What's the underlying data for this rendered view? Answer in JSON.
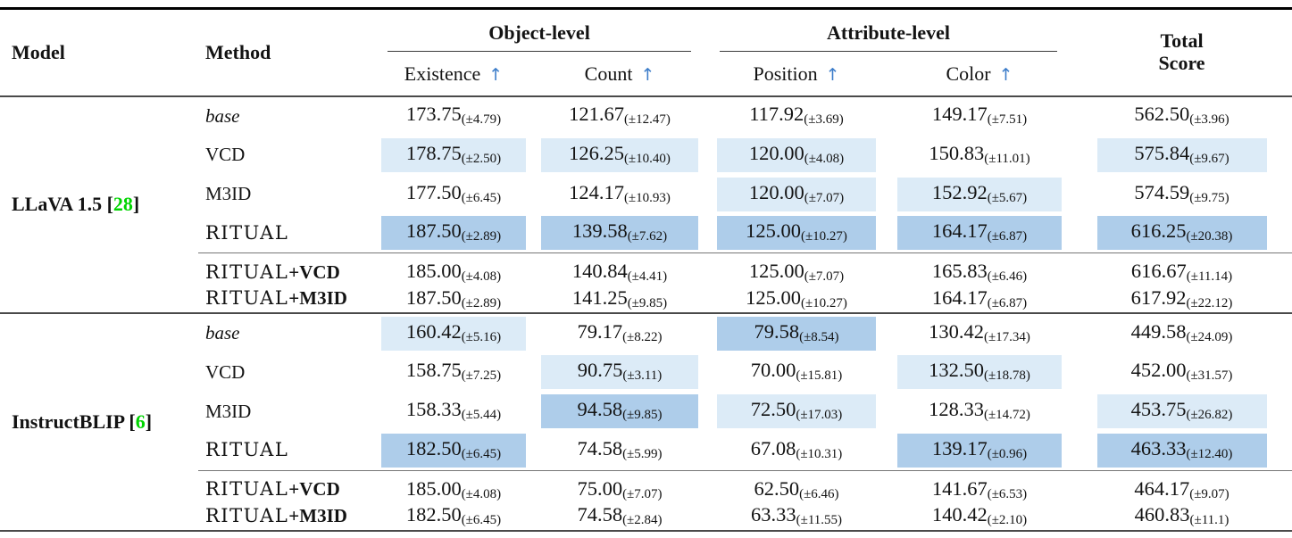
{
  "header": {
    "model": "Model",
    "method": "Method",
    "groups": [
      {
        "label": "Object-level",
        "cols": [
          "Existence",
          "Count"
        ]
      },
      {
        "label": "Attribute-level",
        "cols": [
          "Position",
          "Color"
        ]
      }
    ],
    "total_line1": "Total",
    "total_line2": "Score",
    "arrow": "↑"
  },
  "citation_brackets": {
    "open": "[",
    "close": "]"
  },
  "colors": {
    "highlight_light": "#dcebf7",
    "highlight_dark": "#aecdea",
    "citation_green": "#00d400",
    "arrow_blue": "#3b7cc9"
  },
  "sections": [
    {
      "model": "LLaVA 1.5",
      "citation": "28",
      "rows": [
        {
          "method": "base",
          "style": "italic",
          "cells": [
            {
              "v": "173.75",
              "s": "(±4.79)",
              "hl": "none"
            },
            {
              "v": "121.67",
              "s": "(±12.47)",
              "hl": "none"
            },
            {
              "v": "117.92",
              "s": "(±3.69)",
              "hl": "none"
            },
            {
              "v": "149.17",
              "s": "(±7.51)",
              "hl": "none"
            },
            {
              "v": "562.50",
              "s": "(±3.96)",
              "hl": "none"
            }
          ]
        },
        {
          "method": "VCD",
          "style": "plain",
          "cells": [
            {
              "v": "178.75",
              "s": "(±2.50)",
              "hl": "light"
            },
            {
              "v": "126.25",
              "s": "(±10.40)",
              "hl": "light"
            },
            {
              "v": "120.00",
              "s": "(±4.08)",
              "hl": "light"
            },
            {
              "v": "150.83",
              "s": "(±11.01)",
              "hl": "none"
            },
            {
              "v": "575.84",
              "s": "(±9.67)",
              "hl": "light"
            }
          ]
        },
        {
          "method": "M3ID",
          "style": "plain",
          "cells": [
            {
              "v": "177.50",
              "s": "(±6.45)",
              "hl": "none"
            },
            {
              "v": "124.17",
              "s": "(±10.93)",
              "hl": "none"
            },
            {
              "v": "120.00",
              "s": "(±7.07)",
              "hl": "light"
            },
            {
              "v": "152.92",
              "s": "(±5.67)",
              "hl": "light"
            },
            {
              "v": "574.59",
              "s": "(±9.75)",
              "hl": "none"
            }
          ]
        },
        {
          "method": "RITUAL",
          "style": "logo",
          "cells": [
            {
              "v": "187.50",
              "s": "(±2.89)",
              "hl": "dark"
            },
            {
              "v": "139.58",
              "s": "(±7.62)",
              "hl": "dark"
            },
            {
              "v": "125.00",
              "s": "(±10.27)",
              "hl": "dark"
            },
            {
              "v": "164.17",
              "s": "(±6.87)",
              "hl": "dark"
            },
            {
              "v": "616.25",
              "s": "(±20.38)",
              "hl": "dark"
            }
          ]
        }
      ],
      "subrows": [
        {
          "method": "RITUAL",
          "style": "logo",
          "suffix": "+VCD",
          "cells": [
            {
              "v": "185.00",
              "s": "(±4.08)",
              "hl": "none"
            },
            {
              "v": "140.84",
              "s": "(±4.41)",
              "hl": "none"
            },
            {
              "v": "125.00",
              "s": "(±7.07)",
              "hl": "none"
            },
            {
              "v": "165.83",
              "s": "(±6.46)",
              "hl": "none"
            },
            {
              "v": "616.67",
              "s": "(±11.14)",
              "hl": "none"
            }
          ]
        },
        {
          "method": "RITUAL",
          "style": "logo",
          "suffix": "+M3ID",
          "cells": [
            {
              "v": "187.50",
              "s": "(±2.89)",
              "hl": "none"
            },
            {
              "v": "141.25",
              "s": "(±9.85)",
              "hl": "none"
            },
            {
              "v": "125.00",
              "s": "(±10.27)",
              "hl": "none"
            },
            {
              "v": "164.17",
              "s": "(±6.87)",
              "hl": "none"
            },
            {
              "v": "617.92",
              "s": "(±22.12)",
              "hl": "none"
            }
          ]
        }
      ]
    },
    {
      "model": "InstructBLIP",
      "citation": "6",
      "rows": [
        {
          "method": "base",
          "style": "italic",
          "cells": [
            {
              "v": "160.42",
              "s": "(±5.16)",
              "hl": "light"
            },
            {
              "v": "79.17",
              "s": "(±8.22)",
              "hl": "none"
            },
            {
              "v": "79.58",
              "s": "(±8.54)",
              "hl": "dark"
            },
            {
              "v": "130.42",
              "s": "(±17.34)",
              "hl": "none"
            },
            {
              "v": "449.58",
              "s": "(±24.09)",
              "hl": "none"
            }
          ]
        },
        {
          "method": "VCD",
          "style": "plain",
          "cells": [
            {
              "v": "158.75",
              "s": "(±7.25)",
              "hl": "none"
            },
            {
              "v": "90.75",
              "s": "(±3.11)",
              "hl": "light"
            },
            {
              "v": "70.00",
              "s": "(±15.81)",
              "hl": "none"
            },
            {
              "v": "132.50",
              "s": "(±18.78)",
              "hl": "light"
            },
            {
              "v": "452.00",
              "s": "(±31.57)",
              "hl": "none"
            }
          ]
        },
        {
          "method": "M3ID",
          "style": "plain",
          "cells": [
            {
              "v": "158.33",
              "s": "(±5.44)",
              "hl": "none"
            },
            {
              "v": "94.58",
              "s": "(±9.85)",
              "hl": "dark"
            },
            {
              "v": "72.50",
              "s": "(±17.03)",
              "hl": "light"
            },
            {
              "v": "128.33",
              "s": "(±14.72)",
              "hl": "none"
            },
            {
              "v": "453.75",
              "s": "(±26.82)",
              "hl": "light"
            }
          ]
        },
        {
          "method": "RITUAL",
          "style": "logo",
          "cells": [
            {
              "v": "182.50",
              "s": "(±6.45)",
              "hl": "dark"
            },
            {
              "v": "74.58",
              "s": "(±5.99)",
              "hl": "none"
            },
            {
              "v": "67.08",
              "s": "(±10.31)",
              "hl": "none"
            },
            {
              "v": "139.17",
              "s": "(±0.96)",
              "hl": "dark"
            },
            {
              "v": "463.33",
              "s": "(±12.40)",
              "hl": "dark"
            }
          ]
        }
      ],
      "subrows": [
        {
          "method": "RITUAL",
          "style": "logo",
          "suffix": "+VCD",
          "cells": [
            {
              "v": "185.00",
              "s": "(±4.08)",
              "hl": "none"
            },
            {
              "v": "75.00",
              "s": "(±7.07)",
              "hl": "none"
            },
            {
              "v": "62.50",
              "s": "(±6.46)",
              "hl": "none"
            },
            {
              "v": "141.67",
              "s": "(±6.53)",
              "hl": "none"
            },
            {
              "v": "464.17",
              "s": "(±9.07)",
              "hl": "none"
            }
          ]
        },
        {
          "method": "RITUAL",
          "style": "logo",
          "suffix": "+M3ID",
          "cells": [
            {
              "v": "182.50",
              "s": "(±6.45)",
              "hl": "none"
            },
            {
              "v": "74.58",
              "s": "(±2.84)",
              "hl": "none"
            },
            {
              "v": "63.33",
              "s": "(±11.55)",
              "hl": "none"
            },
            {
              "v": "140.42",
              "s": "(±2.10)",
              "hl": "none"
            },
            {
              "v": "460.83",
              "s": "(±11.1)",
              "hl": "none"
            }
          ]
        }
      ]
    }
  ]
}
